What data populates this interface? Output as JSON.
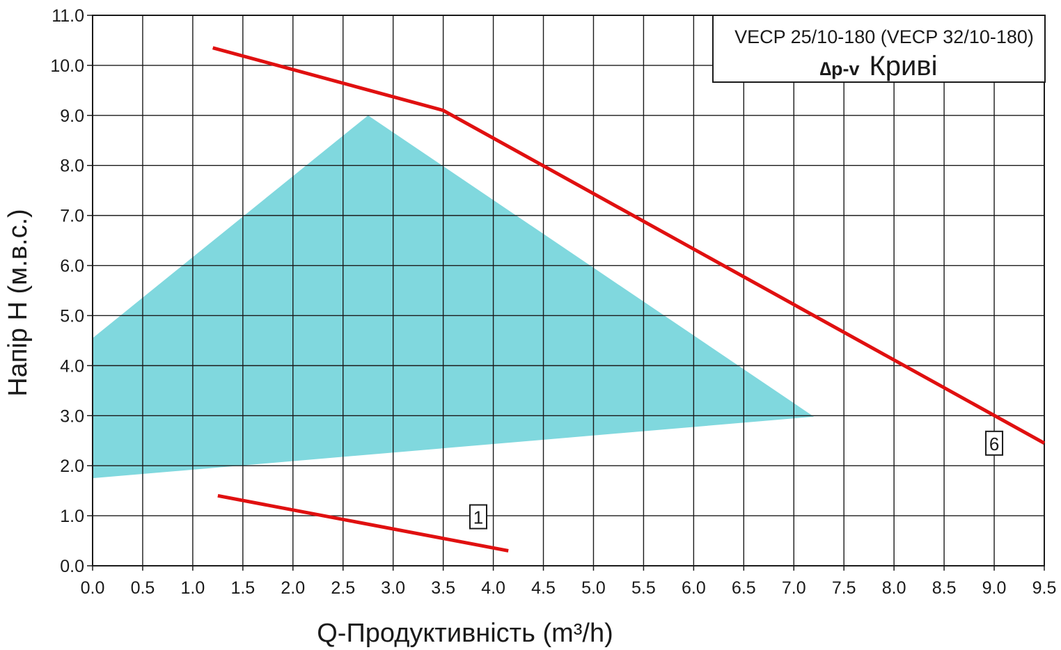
{
  "chart_data": {
    "type": "line",
    "xlabel": "Q-Продуктивність (m³/h)",
    "ylabel": "Напір H (м.в.с.)",
    "xlim": [
      0,
      9.5
    ],
    "ylim": [
      0,
      11
    ],
    "x_ticks": [
      "0.0",
      "0.5",
      "1.0",
      "1.5",
      "2.0",
      "2.5",
      "3.0",
      "3.5",
      "4.0",
      "4.5",
      "5.0",
      "5.5",
      "6.0",
      "6.5",
      "7.0",
      "7.5",
      "8.0",
      "8.5",
      "9.0",
      "9.5"
    ],
    "y_ticks": [
      "0.0",
      "1.0",
      "2.0",
      "3.0",
      "4.0",
      "5.0",
      "6.0",
      "7.0",
      "8.0",
      "9.0",
      "10.0",
      "11.0"
    ],
    "grid": true,
    "legend_box": {
      "line1": "VECP 25/10-180 (VECP 32/10-180)",
      "prefix": "∆p-v",
      "title": "Криві",
      "placement": "top-right"
    },
    "region": {
      "color": "#80d8de",
      "points": [
        [
          0.0,
          4.55
        ],
        [
          2.75,
          9.0
        ],
        [
          7.2,
          2.98
        ],
        [
          0.0,
          1.75
        ]
      ]
    },
    "series": [
      {
        "name": "6",
        "color": "#e01010",
        "points": [
          [
            1.2,
            10.35
          ],
          [
            3.5,
            9.1
          ],
          [
            9.5,
            2.45
          ]
        ]
      },
      {
        "name": "1",
        "color": "#e01010",
        "points": [
          [
            1.25,
            1.4
          ],
          [
            4.15,
            0.3
          ]
        ]
      }
    ]
  }
}
